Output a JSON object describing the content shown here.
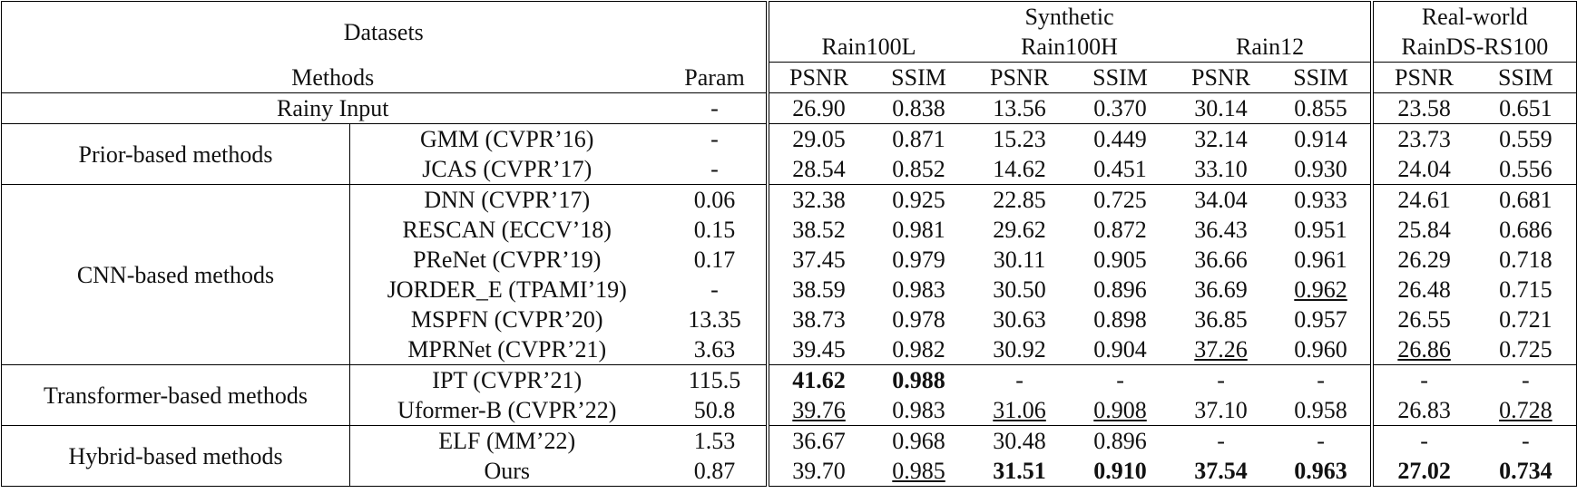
{
  "header": {
    "datasets": "Datasets",
    "groups": [
      {
        "label": "Synthetic",
        "datasets": [
          "Rain100L",
          "Rain100H",
          "Rain12"
        ]
      },
      {
        "label": "Real-world",
        "datasets": [
          "RainDS-RS100"
        ]
      }
    ],
    "methods": "Methods",
    "param": "Param",
    "metrics": [
      "PSNR",
      "SSIM"
    ]
  },
  "table": {
    "sections": [
      {
        "rows": [
          {
            "cells": [
              "Rainy Input",
              "-",
              "26.90",
              "0.838",
              "13.56",
              "0.370",
              "30.14",
              "0.855",
              "23.58",
              "0.651"
            ]
          }
        ]
      },
      {
        "group": "Prior-based methods",
        "rows": [
          {
            "cells": [
              "GMM (CVPR’16)",
              "-",
              "29.05",
              "0.871",
              "15.23",
              "0.449",
              "32.14",
              "0.914",
              "23.73",
              "0.559"
            ]
          },
          {
            "cells": [
              "JCAS (CVPR’17)",
              "-",
              "28.54",
              "0.852",
              "14.62",
              "0.451",
              "33.10",
              "0.930",
              "24.04",
              "0.556"
            ]
          }
        ]
      },
      {
        "group": "CNN-based methods",
        "rows": [
          {
            "cells": [
              "DNN (CVPR’17)",
              "0.06",
              "32.38",
              "0.925",
              "22.85",
              "0.725",
              "34.04",
              "0.933",
              "24.61",
              "0.681"
            ]
          },
          {
            "cells": [
              "RESCAN (ECCV’18)",
              "0.15",
              "38.52",
              "0.981",
              "29.62",
              "0.872",
              "36.43",
              "0.951",
              "25.84",
              "0.686"
            ]
          },
          {
            "cells": [
              "PReNet (CVPR’19)",
              "0.17",
              "37.45",
              "0.979",
              "30.11",
              "0.905",
              "36.66",
              "0.961",
              "26.29",
              "0.718"
            ]
          },
          {
            "cells": [
              "JORDER_E (TPAMI’19)",
              "-",
              "38.59",
              "0.983",
              "30.50",
              "0.896",
              "36.69",
              "0.962",
              "26.48",
              "0.715"
            ],
            "underline": [
              7
            ]
          },
          {
            "cells": [
              "MSPFN (CVPR’20)",
              "13.35",
              "38.73",
              "0.978",
              "30.63",
              "0.898",
              "36.85",
              "0.957",
              "26.55",
              "0.721"
            ]
          },
          {
            "cells": [
              "MPRNet (CVPR’21)",
              "3.63",
              "39.45",
              "0.982",
              "30.92",
              "0.904",
              "37.26",
              "0.960",
              "26.86",
              "0.725"
            ],
            "underline": [
              6,
              8
            ]
          }
        ]
      },
      {
        "group": "Transformer-based methods",
        "rows": [
          {
            "cells": [
              "IPT (CVPR’21)",
              "115.5",
              "41.62",
              "0.988",
              "-",
              "-",
              "-",
              "-",
              "-",
              "-"
            ],
            "bold": [
              2,
              3
            ]
          },
          {
            "cells": [
              "Uformer-B (CVPR’22)",
              "50.8",
              "39.76",
              "0.983",
              "31.06",
              "0.908",
              "37.10",
              "0.958",
              "26.83",
              "0.728"
            ],
            "underline": [
              2,
              4,
              5,
              9
            ]
          }
        ]
      },
      {
        "group": "Hybrid-based methods",
        "rows": [
          {
            "cells": [
              "ELF (MM’22)",
              "1.53",
              "36.67",
              "0.968",
              "30.48",
              "0.896",
              "-",
              "-",
              "-",
              "-"
            ]
          },
          {
            "cells": [
              "Ours",
              "0.87",
              "39.70",
              "0.985",
              "31.51",
              "0.910",
              "37.54",
              "0.963",
              "27.02",
              "0.734"
            ],
            "bold": [
              4,
              5,
              6,
              7,
              8,
              9
            ],
            "underline": [
              3
            ]
          }
        ]
      }
    ]
  }
}
